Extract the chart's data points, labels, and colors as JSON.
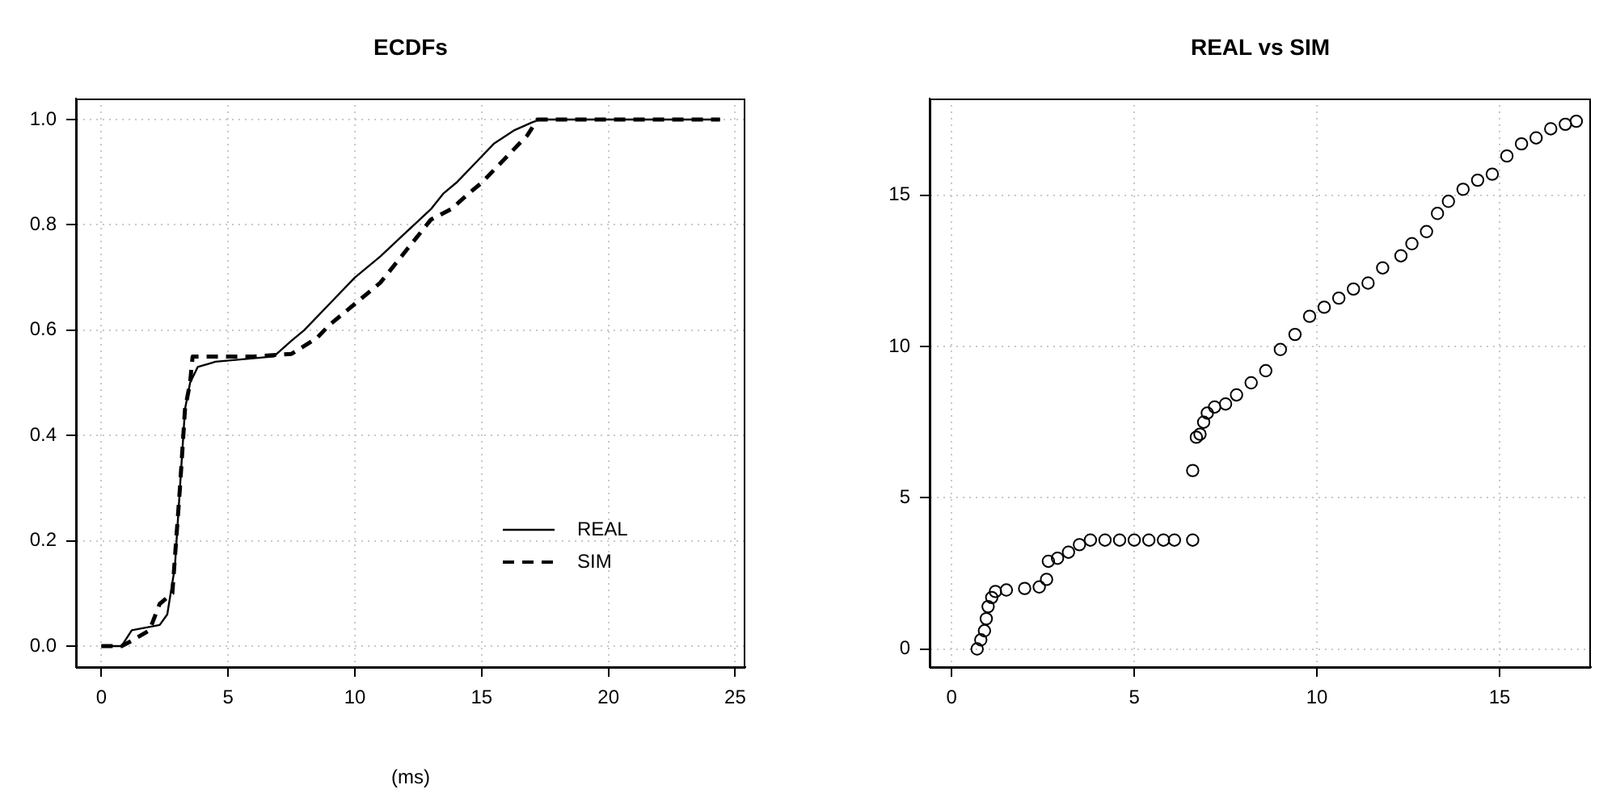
{
  "chart_data": [
    {
      "type": "line",
      "title": "ECDFs",
      "xlabel": "(ms)",
      "xlim": [
        -1,
        25.4
      ],
      "ylim": [
        -0.04,
        1.04
      ],
      "xticks": [
        0,
        5,
        10,
        15,
        20,
        25
      ],
      "yticks": [
        {
          "value": 0,
          "label": "0.0"
        },
        {
          "value": 0.2,
          "label": "0.2"
        },
        {
          "value": 0.4,
          "label": "0.4"
        },
        {
          "value": 0.6,
          "label": "0.6"
        },
        {
          "value": 0.8,
          "label": "0.8"
        },
        {
          "value": 1,
          "label": "1.0"
        }
      ],
      "grid": true,
      "legend": "bottom right",
      "marker": "none",
      "series": [
        {
          "name": "REAL",
          "color": "#000000",
          "line_style": "solid",
          "x": [
            0,
            0.8,
            1.2,
            2.3,
            2.6,
            2.9,
            3.1,
            3.3,
            3.5,
            3.8,
            4.5,
            6.8,
            7.5,
            8,
            9,
            10,
            11,
            12,
            13,
            13.5,
            14,
            14.8,
            15.5,
            16.3,
            17,
            17.3,
            24.4
          ],
          "values": [
            0,
            0,
            0.03,
            0.04,
            0.06,
            0.15,
            0.3,
            0.45,
            0.5,
            0.53,
            0.54,
            0.55,
            0.58,
            0.6,
            0.65,
            0.7,
            0.74,
            0.785,
            0.83,
            0.86,
            0.88,
            0.92,
            0.955,
            0.98,
            0.995,
            1,
            1
          ]
        },
        {
          "name": "SIM",
          "color": "#000000",
          "line_style": "dashed",
          "x": [
            0,
            0.8,
            1.2,
            1.9,
            2.3,
            2.8,
            3.1,
            3.3,
            3.5,
            3.6,
            6,
            7.5,
            8.5,
            9,
            10,
            11,
            12,
            13,
            13.8,
            14.5,
            15,
            16,
            16.8,
            17.2,
            24.4
          ],
          "values": [
            0,
            0,
            0.01,
            0.03,
            0.08,
            0.1,
            0.3,
            0.45,
            0.5,
            0.55,
            0.55,
            0.555,
            0.585,
            0.61,
            0.65,
            0.69,
            0.75,
            0.81,
            0.83,
            0.86,
            0.88,
            0.93,
            0.97,
            1,
            1
          ]
        }
      ]
    },
    {
      "type": "scatter",
      "title": "REAL vs SIM",
      "xlim": [
        -0.6,
        17.5
      ],
      "ylim": [
        -0.6,
        18.2
      ],
      "xticks": [
        0,
        5,
        10,
        15
      ],
      "yticks": [
        0,
        5,
        10,
        15
      ],
      "grid": true,
      "marker": "circle",
      "series": [
        {
          "color": "#000000",
          "x": [
            0.7,
            0.8,
            0.9,
            0.95,
            1.0,
            1.1,
            1.2,
            1.5,
            2.0,
            2.4,
            2.6,
            2.65,
            2.9,
            3.2,
            3.5,
            3.8,
            4.2,
            4.6,
            5.0,
            5.4,
            5.8,
            6.1,
            6.6,
            6.6,
            6.7,
            6.8,
            6.9,
            7.0,
            7.2,
            7.5,
            7.8,
            8.2,
            8.6,
            9.0,
            9.4,
            9.8,
            10.2,
            10.6,
            11.0,
            11.4,
            11.8,
            12.3,
            12.6,
            13.0,
            13.3,
            13.6,
            14.0,
            14.4,
            14.8,
            15.2,
            15.6,
            16.0,
            16.4,
            16.8,
            17.1
          ],
          "values": [
            0,
            0.3,
            0.6,
            1.0,
            1.4,
            1.7,
            1.9,
            1.95,
            2.0,
            2.05,
            2.3,
            2.9,
            3.0,
            3.2,
            3.45,
            3.6,
            3.6,
            3.6,
            3.6,
            3.6,
            3.6,
            3.6,
            3.6,
            5.9,
            7.0,
            7.1,
            7.5,
            7.8,
            8.0,
            8.1,
            8.4,
            8.8,
            9.2,
            9.9,
            10.4,
            11.0,
            11.3,
            11.6,
            11.9,
            12.1,
            12.6,
            13.0,
            13.4,
            13.8,
            14.4,
            14.8,
            15.2,
            15.5,
            15.7,
            16.3,
            16.7,
            16.9,
            17.2,
            17.35,
            17.45
          ]
        }
      ]
    }
  ]
}
